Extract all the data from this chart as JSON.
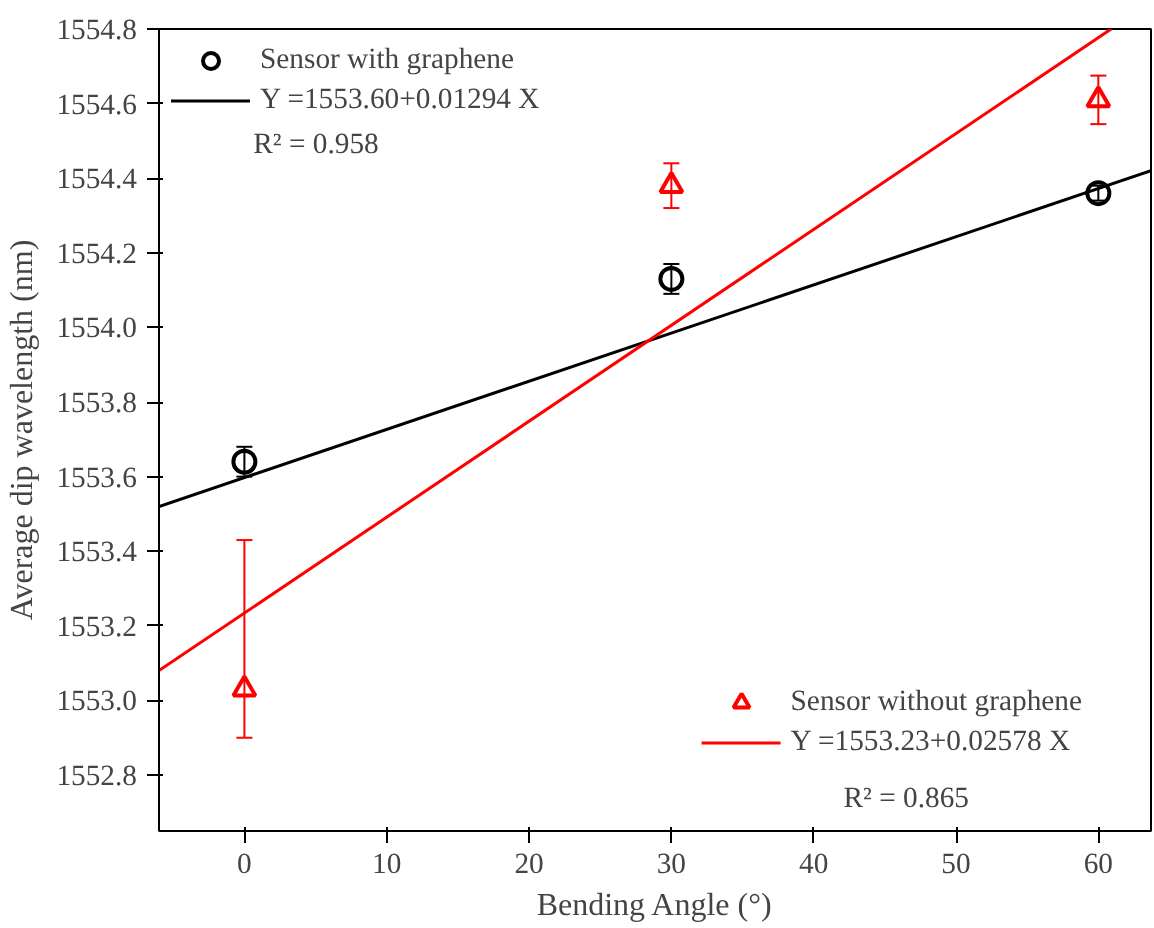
{
  "chart_data": {
    "type": "scatter",
    "xlabel": "Bending Angle (°)",
    "ylabel": "Average dip wavelength (nm)",
    "xlim": [
      -6,
      63.7
    ],
    "ylim": [
      1552.65,
      1554.8
    ],
    "xticks": [
      0,
      10,
      20,
      30,
      40,
      50,
      60
    ],
    "yticks": [
      1552.8,
      {
        "value": 1553.0,
        "label": "1553.0"
      },
      1553.2,
      1553.4,
      1553.6,
      1553.8,
      {
        "value": 1554.0,
        "label": "1554.0"
      },
      1554.2,
      1554.4,
      1554.6,
      1554.8
    ],
    "grid": false,
    "legend": [
      "top left",
      "bottom right"
    ],
    "series": [
      {
        "name": "Sensor with graphene",
        "marker": "circle",
        "color": "#000000",
        "x": [
          0,
          30,
          60
        ],
        "values": [
          1553.64,
          1554.13,
          1554.36
        ],
        "errors": [
          0.04,
          0.04,
          0.02
        ]
      },
      {
        "name": "Y =1553.60+0.01294 X",
        "type": "line",
        "color": "#000000",
        "x": [
          -6,
          63.7
        ],
        "values": [
          1553.52,
          1554.42
        ]
      },
      {
        "name": "Sensor without graphene",
        "marker": "triangle",
        "color": "#ff0000",
        "x": [
          0,
          30,
          60
        ],
        "values": [
          1553.03,
          1554.38,
          1554.61
        ],
        "errors": [
          [
            1552.9,
            1553.43
          ],
          0.06,
          0.065
        ]
      },
      {
        "name": "Y =1553.23+0.02578 X",
        "type": "line",
        "color": "#ff0000",
        "x": [
          -6,
          60.9
        ],
        "values": [
          1553.08,
          1554.8
        ]
      }
    ],
    "annotations": [
      "R² = 0.958",
      "R² = 0.865"
    ]
  }
}
